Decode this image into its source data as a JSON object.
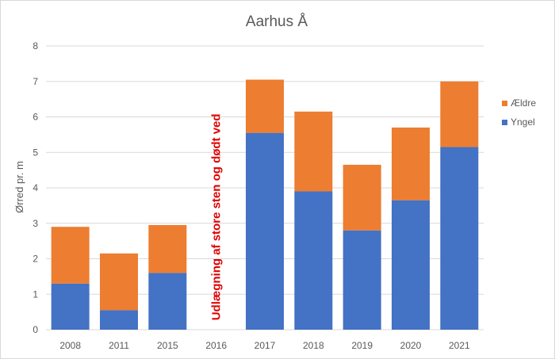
{
  "chart_data": {
    "type": "bar",
    "stacked": true,
    "title": "Aarhus Å",
    "ylabel": "Ørred pr. m",
    "xlabel": "",
    "ylim": [
      0,
      8
    ],
    "yticks": [
      "0",
      "1",
      "2",
      "3",
      "4",
      "5",
      "6",
      "7",
      "8"
    ],
    "grid": true,
    "legend_position": "right",
    "categories": [
      "2008",
      "2011",
      "2015",
      "2016",
      "2017",
      "2018",
      "2019",
      "2020",
      "2021"
    ],
    "series": [
      {
        "name": "Yngel",
        "color": "#4472c4",
        "values": [
          1.3,
          0.55,
          1.6,
          0,
          5.55,
          3.9,
          2.8,
          3.65,
          5.15
        ]
      },
      {
        "name": "Ældre",
        "color": "#ed7d31",
        "values": [
          1.6,
          1.6,
          1.35,
          0,
          1.5,
          2.25,
          1.85,
          2.05,
          1.85
        ]
      }
    ],
    "annotation": {
      "text": "Udlægning af store sten og dødt ved",
      "category": "2016",
      "color": "#e00000"
    }
  }
}
